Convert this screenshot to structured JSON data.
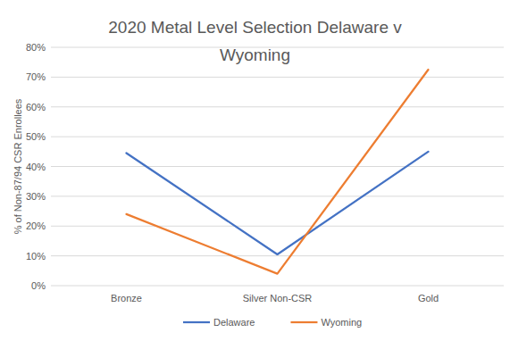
{
  "chart_data": {
    "type": "line",
    "title": "2020 Metal Level Selection Delaware v Wyoming",
    "y_label": "% of Non-87/94 CSR Enrollees",
    "categories": [
      "Bronze",
      "Silver Non-CSR",
      "Gold"
    ],
    "series": [
      {
        "name": "Delaware",
        "color": "#4472c4",
        "values": [
          44.5,
          10.5,
          45
        ]
      },
      {
        "name": "Wyoming",
        "color": "#ed7d31",
        "values": [
          24,
          4,
          72.5
        ]
      }
    ],
    "ylim": [
      0,
      80
    ],
    "yticks": [
      {
        "value": 0,
        "label": "0%"
      },
      {
        "value": 10,
        "label": "10%"
      },
      {
        "value": 20,
        "label": "20%"
      },
      {
        "value": 30,
        "label": "30%"
      },
      {
        "value": 40,
        "label": "40%"
      },
      {
        "value": 50,
        "label": "50%"
      },
      {
        "value": 60,
        "label": "60%"
      },
      {
        "value": 70,
        "label": "70%"
      },
      {
        "value": 80,
        "label": "80%"
      }
    ],
    "grid": true,
    "legend": "bottom"
  }
}
